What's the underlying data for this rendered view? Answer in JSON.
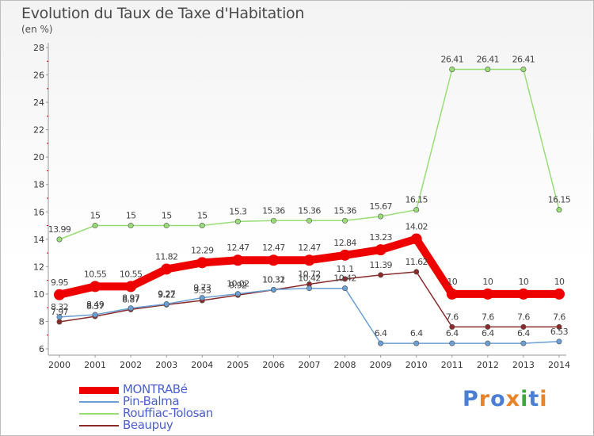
{
  "title": "Evolution du Taux de Taxe d'Habitation",
  "subtitle": "(en %)",
  "logo": "Proxiti",
  "colors": {
    "logo": [
      "#4a7fd4",
      "#e8832a",
      "#4a7fd4",
      "#e8832a",
      "#3aaa3a",
      "#4a7fd4",
      "#e8832a"
    ]
  },
  "chart_data": {
    "type": "line",
    "title": "Evolution du Taux de Taxe d'Habitation",
    "ylabel": "(en %)",
    "xlabel": "",
    "x": [
      "2000",
      "2001",
      "2002",
      "2003",
      "2004",
      "2005",
      "2006",
      "2007",
      "2008",
      "2009",
      "2010",
      "2011",
      "2012",
      "2013",
      "2014"
    ],
    "ylim": [
      6,
      28
    ],
    "yticks": [
      "6",
      "8",
      "10",
      "12",
      "14",
      "16",
      "18",
      "20",
      "22",
      "24",
      "26",
      "28"
    ],
    "grid": false,
    "legend_position": "bottom-left",
    "series": [
      {
        "name": "MONTRABé",
        "color": "#ee0000",
        "values": [
          9.95,
          10.55,
          10.55,
          11.82,
          12.29,
          12.47,
          12.47,
          12.47,
          12.84,
          13.23,
          14.02,
          10,
          10,
          10,
          10
        ],
        "labels": [
          "9.95",
          "10.55",
          "10.55",
          "11.82",
          "12.29",
          "12.47",
          "12.47",
          "12.47",
          "12.84",
          "13.23",
          "14.02",
          "10",
          "10",
          "10",
          "10"
        ]
      },
      {
        "name": "Pin-Balma",
        "color": "#6a9fd4",
        "values": [
          8.32,
          8.49,
          8.97,
          9.27,
          9.73,
          10.02,
          10.32,
          10.42,
          10.42,
          6.4,
          6.4,
          6.4,
          6.4,
          6.4,
          6.53
        ],
        "labels": [
          "8.32",
          "8.49",
          "8.97",
          "9.27",
          "9.73",
          "10.02",
          "10.32",
          "10.42",
          "10.42",
          "6.4",
          "6.4",
          "6.4",
          "6.4",
          "6.4",
          "6.53"
        ]
      },
      {
        "name": "Rouffiac-Tolosan",
        "color": "#99dd77",
        "values": [
          13.99,
          15,
          15,
          15,
          15,
          15.3,
          15.36,
          15.36,
          15.36,
          15.67,
          16.15,
          26.41,
          26.41,
          26.41,
          16.15
        ],
        "labels": [
          "13.99",
          "15",
          "15",
          "15",
          "15",
          "15.3",
          "15.36",
          "15.36",
          "15.36",
          "15.67",
          "16.15",
          "26.41",
          "26.41",
          "26.41",
          "16.15"
        ]
      },
      {
        "name": "Beaupuy",
        "color": "#8a2a2a",
        "values": [
          7.97,
          8.37,
          8.87,
          9.22,
          9.53,
          9.92,
          10.31,
          10.72,
          11.1,
          11.39,
          11.62,
          7.6,
          7.6,
          7.6,
          7.6
        ],
        "labels": [
          "7.97",
          "8.37",
          "8.87",
          "9.22",
          "9.53",
          "9.92",
          "10.31",
          "10.72",
          "11.1",
          "11.39",
          "11.62",
          "7.6",
          "7.6",
          "7.6",
          "7.6"
        ]
      }
    ]
  }
}
